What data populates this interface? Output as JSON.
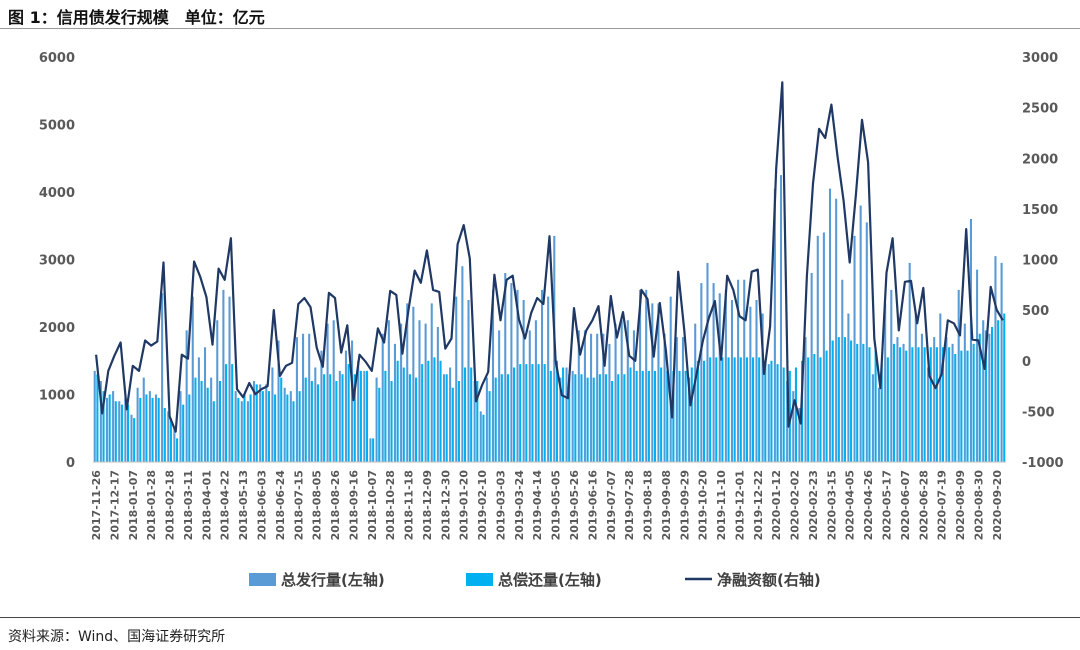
{
  "header": {
    "title": "图 1：信用债发行规模　单位：亿元"
  },
  "footer": {
    "source": "资料来源：Wind、国海证券研究所"
  },
  "chart_data": {
    "type": "bar",
    "categories": [
      "2017-11-26",
      "2017-12-03",
      "2017-12-10",
      "2017-12-17",
      "2017-12-24",
      "2017-12-31",
      "2018-01-07",
      "2018-01-14",
      "2018-01-21",
      "2018-01-28",
      "2018-02-04",
      "2018-02-11",
      "2018-02-18",
      "2018-02-25",
      "2018-03-04",
      "2018-03-11",
      "2018-03-18",
      "2018-03-25",
      "2018-04-01",
      "2018-04-08",
      "2018-04-15",
      "2018-04-22",
      "2018-04-29",
      "2018-05-06",
      "2018-05-13",
      "2018-05-20",
      "2018-05-27",
      "2018-06-03",
      "2018-06-10",
      "2018-06-17",
      "2018-06-24",
      "2018-07-01",
      "2018-07-08",
      "2018-07-15",
      "2018-07-22",
      "2018-07-29",
      "2018-08-05",
      "2018-08-12",
      "2018-08-19",
      "2018-08-26",
      "2018-09-02",
      "2018-09-09",
      "2018-09-16",
      "2018-09-23",
      "2018-09-30",
      "2018-10-07",
      "2018-10-14",
      "2018-10-21",
      "2018-10-28",
      "2018-11-04",
      "2018-11-11",
      "2018-11-18",
      "2018-11-25",
      "2018-12-02",
      "2018-12-09",
      "2018-12-16",
      "2018-12-23",
      "2018-12-30",
      "2019-01-06",
      "2019-01-13",
      "2019-01-20",
      "2019-01-27",
      "2019-02-03",
      "2019-02-10",
      "2019-02-17",
      "2019-02-24",
      "2019-03-03",
      "2019-03-10",
      "2019-03-17",
      "2019-03-24",
      "2019-03-31",
      "2019-04-07",
      "2019-04-14",
      "2019-04-21",
      "2019-04-28",
      "2019-05-05",
      "2019-05-12",
      "2019-05-19",
      "2019-05-26",
      "2019-06-02",
      "2019-06-09",
      "2019-06-16",
      "2019-06-23",
      "2019-06-30",
      "2019-07-07",
      "2019-07-14",
      "2019-07-21",
      "2019-07-28",
      "2019-08-04",
      "2019-08-11",
      "2019-08-18",
      "2019-08-25",
      "2019-09-01",
      "2019-09-08",
      "2019-09-15",
      "2019-09-22",
      "2019-09-29",
      "2019-10-06",
      "2019-10-13",
      "2019-10-20",
      "2019-10-27",
      "2019-11-03",
      "2019-11-10",
      "2019-11-17",
      "2019-11-24",
      "2019-12-01",
      "2019-12-08",
      "2019-12-15",
      "2019-12-22",
      "2019-12-29",
      "2020-01-05",
      "2020-01-12",
      "2020-01-19",
      "2020-01-26",
      "2020-02-02",
      "2020-02-09",
      "2020-02-16",
      "2020-02-23",
      "2020-03-01",
      "2020-03-08",
      "2020-03-15",
      "2020-03-22",
      "2020-03-29",
      "2020-04-05",
      "2020-04-12",
      "2020-04-19",
      "2020-04-26",
      "2020-05-03",
      "2020-05-10",
      "2020-05-17",
      "2020-05-24",
      "2020-05-31",
      "2020-06-07",
      "2020-06-14",
      "2020-06-21",
      "2020-06-28",
      "2020-07-05",
      "2020-07-12",
      "2020-07-19",
      "2020-07-26",
      "2020-08-02",
      "2020-08-09",
      "2020-08-16",
      "2020-08-23",
      "2020-08-30",
      "2020-09-06",
      "2020-09-13",
      "2020-09-20",
      "2020-09-27"
    ],
    "tick_labels": [
      "2017-11-26",
      "2017-12-17",
      "2018-01-07",
      "2018-01-28",
      "2018-02-18",
      "2018-03-11",
      "2018-04-01",
      "2018-04-22",
      "2018-05-13",
      "2018-06-03",
      "2018-06-24",
      "2018-07-15",
      "2018-08-05",
      "2018-08-26",
      "2018-09-16",
      "2018-10-07",
      "2018-10-28",
      "2018-11-18",
      "2018-12-09",
      "2018-12-30",
      "2019-01-20",
      "2019-02-10",
      "2019-03-03",
      "2019-03-24",
      "2019-04-14",
      "2019-05-05",
      "2019-05-26",
      "2019-06-16",
      "2019-07-07",
      "2019-07-28",
      "2019-08-18",
      "2019-09-08",
      "2019-09-29",
      "2019-10-20",
      "2019-11-10",
      "2019-12-01",
      "2019-12-22",
      "2020-01-12",
      "2020-02-02",
      "2020-02-23",
      "2020-03-15",
      "2020-04-05",
      "2020-04-26",
      "2020-05-17",
      "2020-06-07",
      "2020-06-28",
      "2020-07-19",
      "2020-08-09",
      "2020-08-30",
      "2020-09-20"
    ],
    "series": [
      {
        "name": "总发行量(左轴)",
        "axis": "left",
        "type": "bar",
        "color": "#5b9bd5",
        "values": [
          1350,
          1200,
          950,
          1050,
          900,
          950,
          700,
          1100,
          1250,
          1050,
          1000,
          2500,
          750,
          500,
          1050,
          1950,
          2450,
          1550,
          1700,
          1250,
          2100,
          2550,
          2450,
          1050,
          900,
          900,
          1200,
          1150,
          1150,
          1400,
          1800,
          1100,
          1050,
          1850,
          1900,
          1900,
          1400,
          1650,
          2050,
          2100,
          1350,
          1650,
          1800,
          1500,
          1350,
          350,
          1250,
          1900,
          2100,
          1750,
          2050,
          2350,
          2300,
          2100,
          2050,
          2350,
          2000,
          1300,
          1400,
          2450,
          2900,
          2400,
          1200,
          750,
          1250,
          2550,
          1950,
          2800,
          2650,
          2550,
          2400,
          1950,
          2100,
          2550,
          2450,
          3350,
          1250,
          1400,
          1350,
          1950,
          1950,
          1900,
          1900,
          1900,
          1750,
          2050,
          2100,
          2100,
          1950,
          2550,
          2550,
          2350,
          2350,
          1900,
          2450,
          1850,
          1850,
          1250,
          2050,
          2650,
          2950,
          2650,
          2500,
          2550,
          2400,
          2700,
          2700,
          2300,
          2400,
          2200,
          1450,
          4050,
          4250,
          1200,
          1050,
          800,
          1850,
          2800,
          3350,
          3400,
          4050,
          3900,
          2700,
          2200,
          3350,
          3800,
          3550,
          1300,
          1100,
          2350,
          2550,
          1850,
          1750,
          2950,
          2200,
          1900,
          1400,
          1850,
          2200,
          1850,
          1750,
          2550,
          2050,
          3600,
          2850,
          2100,
          1900,
          3050,
          2950
        ]
      },
      {
        "name": "总偿还量(左轴)",
        "axis": "left",
        "type": "bar",
        "color": "#00b0f0",
        "values": [
          1300,
          1050,
          1000,
          900,
          850,
          850,
          650,
          950,
          1000,
          950,
          950,
          800,
          650,
          350,
          850,
          1000,
          1250,
          1200,
          1100,
          900,
          1200,
          1450,
          1450,
          950,
          1000,
          1000,
          1150,
          1050,
          1050,
          1000,
          1250,
          1000,
          900,
          1050,
          1250,
          1200,
          1150,
          1300,
          1300,
          1200,
          1300,
          1450,
          1300,
          1350,
          1350,
          350,
          1100,
          1350,
          1200,
          1500,
          1400,
          1300,
          1250,
          1450,
          1500,
          1550,
          1500,
          1300,
          1100,
          1200,
          1400,
          1400,
          1200,
          700,
          1050,
          1250,
          1300,
          1300,
          1400,
          1450,
          1450,
          1450,
          1450,
          1450,
          1350,
          1500,
          1400,
          1300,
          1300,
          1300,
          1250,
          1250,
          1300,
          1300,
          1200,
          1300,
          1300,
          1400,
          1350,
          1350,
          1350,
          1350,
          1400,
          1350,
          1350,
          1350,
          1350,
          1400,
          1500,
          1500,
          1550,
          1550,
          1550,
          1550,
          1550,
          1550,
          1550,
          1550,
          1550,
          1500,
          1500,
          1450,
          1400,
          1350,
          1400,
          1500,
          1550,
          1600,
          1550,
          1650,
          1800,
          1850,
          1850,
          1800,
          1750,
          1750,
          1700,
          1650,
          1450,
          1550,
          1750,
          1700,
          1650,
          1700,
          1700,
          1700,
          1700,
          1700,
          1700,
          1700,
          1600,
          1650,
          1650,
          1750,
          1900,
          1950,
          2000,
          2100,
          2200
        ]
      },
      {
        "name": "净融资额(右轴)",
        "axis": "right",
        "type": "line",
        "color": "#1f3864",
        "values": [
          60,
          -520,
          -100,
          50,
          180,
          -480,
          -50,
          -100,
          200,
          150,
          190,
          970,
          -550,
          -700,
          60,
          20,
          980,
          830,
          630,
          160,
          910,
          800,
          1210,
          -280,
          -360,
          -220,
          -330,
          -280,
          -250,
          500,
          -150,
          -50,
          -20,
          560,
          620,
          530,
          130,
          -60,
          670,
          620,
          80,
          350,
          -390,
          60,
          -10,
          -100,
          320,
          180,
          690,
          650,
          70,
          510,
          890,
          770,
          1090,
          700,
          680,
          120,
          220,
          1150,
          1340,
          1010,
          -400,
          -240,
          -110,
          850,
          400,
          800,
          840,
          410,
          220,
          470,
          620,
          560,
          1230,
          0,
          -340,
          -370,
          520,
          60,
          300,
          400,
          540,
          -50,
          640,
          230,
          480,
          50,
          0,
          700,
          610,
          40,
          570,
          100,
          -560,
          880,
          300,
          -440,
          -130,
          190,
          420,
          590,
          10,
          840,
          700,
          440,
          400,
          880,
          900,
          -130,
          340,
          1900,
          2750,
          -650,
          -390,
          -620,
          840,
          1750,
          2290,
          2200,
          2530,
          2020,
          1580,
          970,
          1640,
          2380,
          1960,
          220,
          -270,
          870,
          1210,
          300,
          780,
          790,
          370,
          720,
          -150,
          -270,
          -130,
          400,
          370,
          250,
          1300,
          210,
          200,
          -80,
          730,
          500,
          400
        ]
      }
    ],
    "y_left": {
      "min": 0,
      "max": 6000,
      "ticks": [
        0,
        1000,
        2000,
        3000,
        4000,
        5000,
        6000
      ]
    },
    "y_right": {
      "min": -1000,
      "max": 3000,
      "ticks": [
        -1000,
        -500,
        0,
        500,
        1000,
        1500,
        2000,
        2500,
        3000
      ]
    },
    "legend": {
      "position": "bottom"
    },
    "grid": false
  }
}
